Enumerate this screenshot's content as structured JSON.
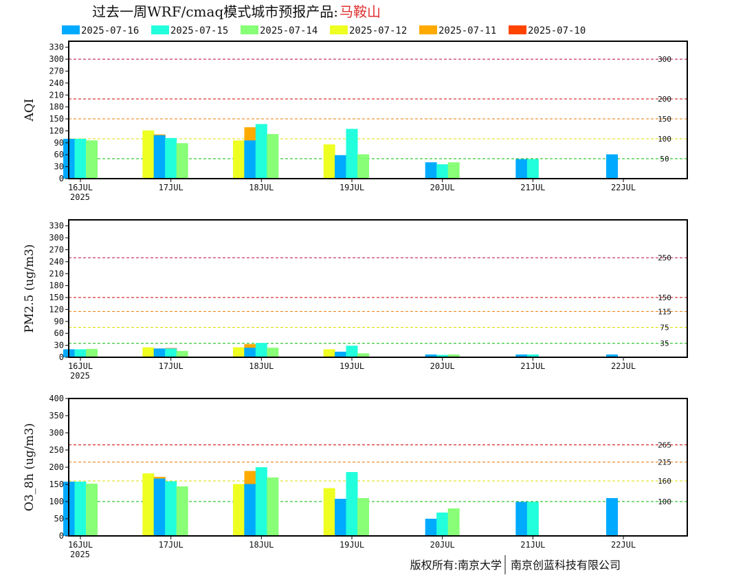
{
  "title": "过去一周WRF/cmaq模式城市预报产品:",
  "city": "马鞍山",
  "footer": {
    "left": "版权所有:南京大学",
    "right": "南京创蓝科技有限公司"
  },
  "legend": [
    {
      "label": "2025-07-16",
      "color": "#00aaff"
    },
    {
      "label": "2025-07-15",
      "color": "#22ffdd"
    },
    {
      "label": "2025-07-14",
      "color": "#88ff77"
    },
    {
      "label": "2025-07-12",
      "color": "#eeff22"
    },
    {
      "label": "2025-07-11",
      "color": "#ffaa00"
    },
    {
      "label": "2025-07-10",
      "color": "#ff4400"
    }
  ],
  "x_ticks": [
    "16JUL",
    "17JUL",
    "18JUL",
    "19JUL",
    "20JUL",
    "21JUL",
    "22JUL"
  ],
  "x_year": "2025",
  "chart_data": [
    {
      "type": "bar",
      "ylabel": "AQI",
      "ylim": [
        0,
        345
      ],
      "yticks": [
        0,
        30,
        60,
        90,
        120,
        150,
        180,
        210,
        240,
        270,
        300,
        330
      ],
      "thresholds": [
        {
          "value": 300,
          "label": "300",
          "color": "#bb0044"
        },
        {
          "value": 200,
          "label": "200",
          "color": "#cc0000"
        },
        {
          "value": 150,
          "label": "150",
          "color": "#ee7700"
        },
        {
          "value": 100,
          "label": "100",
          "color": "#dddd00"
        },
        {
          "value": 50,
          "label": "50",
          "color": "#00bb00"
        }
      ],
      "groups": [
        {
          "x": 0.0,
          "values": [
            100,
            100,
            96
          ]
        },
        {
          "x": 0.5,
          "values": [
            null,
            null,
            null,
            121,
            111,
            85
          ]
        },
        {
          "x": 1.0,
          "values": [
            109,
            102,
            89
          ]
        },
        {
          "x": 1.5,
          "values": [
            null,
            null,
            null,
            96,
            129
          ]
        },
        {
          "x": 2.0,
          "values": [
            96,
            137,
            112
          ]
        },
        {
          "x": 2.5,
          "values": [
            null,
            null,
            null,
            86
          ]
        },
        {
          "x": 3.0,
          "values": [
            59,
            125,
            61
          ]
        },
        {
          "x": 4.0,
          "values": [
            41,
            36,
            41
          ]
        },
        {
          "x": 5.0,
          "values": [
            49,
            49
          ]
        },
        {
          "x": 6.0,
          "values": [
            61
          ]
        }
      ]
    },
    {
      "type": "bar",
      "ylabel": "PM2.5 (ug/m3)",
      "ylim": [
        0,
        345
      ],
      "yticks": [
        0,
        30,
        60,
        90,
        120,
        150,
        180,
        210,
        240,
        270,
        300,
        330
      ],
      "thresholds": [
        {
          "value": 250,
          "label": "250",
          "color": "#bb0044"
        },
        {
          "value": 150,
          "label": "150",
          "color": "#cc0000"
        },
        {
          "value": 115,
          "label": "115",
          "color": "#ee7700"
        },
        {
          "value": 75,
          "label": "75",
          "color": "#dddd00"
        },
        {
          "value": 35,
          "label": "35",
          "color": "#00bb00"
        }
      ],
      "groups": [
        {
          "x": 0.0,
          "values": [
            20,
            20,
            21
          ]
        },
        {
          "x": 0.5,
          "values": [
            null,
            null,
            null,
            25,
            22,
            23
          ]
        },
        {
          "x": 1.0,
          "values": [
            22,
            22,
            16
          ]
        },
        {
          "x": 1.5,
          "values": [
            null,
            null,
            null,
            25,
            33
          ]
        },
        {
          "x": 2.0,
          "values": [
            24,
            36,
            24
          ]
        },
        {
          "x": 2.5,
          "values": [
            null,
            null,
            null,
            20
          ]
        },
        {
          "x": 3.0,
          "values": [
            14,
            29,
            10
          ]
        },
        {
          "x": 4.0,
          "values": [
            7,
            6,
            7
          ]
        },
        {
          "x": 5.0,
          "values": [
            7,
            7
          ]
        },
        {
          "x": 6.0,
          "values": [
            7
          ]
        }
      ]
    },
    {
      "type": "bar",
      "ylabel": "O3_8h (ug/m3)",
      "ylim": [
        0,
        400
      ],
      "yticks": [
        0,
        50,
        100,
        150,
        200,
        250,
        300,
        350,
        400
      ],
      "thresholds": [
        {
          "value": 265,
          "label": "265",
          "color": "#cc0000"
        },
        {
          "value": 215,
          "label": "215",
          "color": "#ee7700"
        },
        {
          "value": 160,
          "label": "160",
          "color": "#dddd00"
        },
        {
          "value": 100,
          "label": "100",
          "color": "#00bb00"
        }
      ],
      "groups": [
        {
          "x": 0.0,
          "values": [
            158,
            158,
            152
          ]
        },
        {
          "x": 0.5,
          "values": [
            null,
            null,
            null,
            182,
            172,
            142
          ]
        },
        {
          "x": 1.0,
          "values": [
            167,
            159,
            144
          ]
        },
        {
          "x": 1.5,
          "values": [
            null,
            null,
            null,
            151,
            189
          ]
        },
        {
          "x": 2.0,
          "values": [
            151,
            200,
            170
          ]
        },
        {
          "x": 2.5,
          "values": [
            null,
            null,
            null,
            139
          ]
        },
        {
          "x": 3.0,
          "values": [
            108,
            186,
            110
          ]
        },
        {
          "x": 4.0,
          "values": [
            50,
            68,
            80
          ]
        },
        {
          "x": 5.0,
          "values": [
            99,
            99
          ]
        },
        {
          "x": 6.0,
          "values": [
            110
          ]
        }
      ]
    }
  ]
}
